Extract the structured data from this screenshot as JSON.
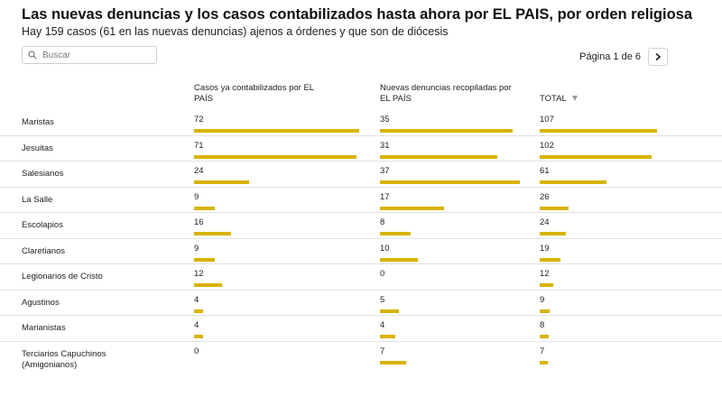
{
  "header": {
    "title": "Las nuevas denuncias y los casos contabilizados hasta ahora por EL PAIS, por orden religiosa",
    "subtitle": "Hay 159 casos (61 en las nuevas denuncias) ajenos a órdenes y que son de diócesis"
  },
  "search": {
    "placeholder": "Buscar",
    "value": ""
  },
  "pagination": {
    "label": "Página 1 de 6",
    "current": 1,
    "total": 6
  },
  "colors": {
    "bar": "#d8b400",
    "divider": "#e1e1e1"
  },
  "icons": {
    "search": "search-icon",
    "next": "chevron-right-icon",
    "sort": "sort-desc-icon"
  },
  "chart_data": {
    "type": "table",
    "columns": [
      {
        "key": "contabilizados",
        "label": "Casos ya contabilizados por EL PAÍS"
      },
      {
        "key": "nuevas",
        "label": "Nuevas denuncias recopiladas por EL PAÍS"
      },
      {
        "key": "total",
        "label": "TOTAL",
        "sorted": "descending"
      }
    ],
    "rows": [
      {
        "label": "Maristas",
        "values": [
          72,
          35,
          107
        ]
      },
      {
        "label": "Jesuitas",
        "values": [
          71,
          31,
          102
        ]
      },
      {
        "label": "Salesianos",
        "values": [
          24,
          37,
          61
        ]
      },
      {
        "label": "La Salle",
        "values": [
          9,
          17,
          26
        ]
      },
      {
        "label": "Escolapios",
        "values": [
          16,
          8,
          24
        ]
      },
      {
        "label": "Claretianos",
        "values": [
          9,
          10,
          19
        ]
      },
      {
        "label": "Legionarios de Cristo",
        "values": [
          12,
          0,
          12
        ]
      },
      {
        "label": "Agustinos",
        "values": [
          4,
          5,
          9
        ]
      },
      {
        "label": "Marianistas",
        "values": [
          4,
          4,
          8
        ]
      },
      {
        "label": "Terciarios Capuchinos (Amigonianos)",
        "values": [
          0,
          7,
          7
        ]
      }
    ],
    "column_max": [
      72,
      37,
      107
    ]
  }
}
